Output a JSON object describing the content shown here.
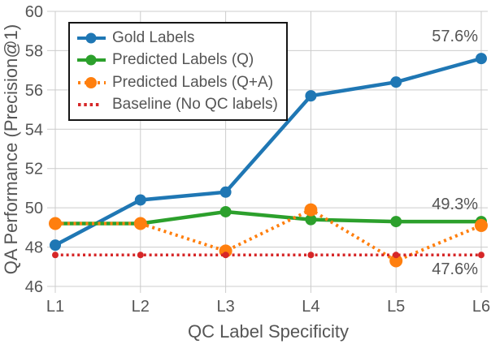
{
  "figure": {
    "background": "#ffffff",
    "text_color": "#555555",
    "grid_color": "#cccccc",
    "legend_border_color": "#151515"
  },
  "chart_data": {
    "type": "line",
    "title": "",
    "xlabel": "QC Label Specificity",
    "ylabel": "QA Performance (Precision@1)",
    "categories": [
      "L1",
      "L2",
      "L3",
      "L4",
      "L5",
      "L6"
    ],
    "yticks": [
      46,
      48,
      50,
      52,
      54,
      56,
      58,
      60
    ],
    "ylim": [
      46,
      60
    ],
    "grid": true,
    "legend_position": "upper-left",
    "series": [
      {
        "name": "Gold Labels",
        "color": "#1f77b4",
        "style": "solid",
        "marker": "circle",
        "values": [
          48.1,
          50.4,
          50.8,
          55.7,
          56.4,
          57.6
        ]
      },
      {
        "name": "Predicted Labels (Q)",
        "color": "#2ca02c",
        "style": "solid",
        "marker": "circle",
        "values": [
          49.2,
          49.2,
          49.8,
          49.4,
          49.3,
          49.3
        ]
      },
      {
        "name": "Predicted Labels (Q+A)",
        "color": "#ff7f0e",
        "style": "dotted",
        "marker": "circle",
        "values": [
          49.2,
          49.2,
          47.8,
          49.9,
          47.3,
          49.1
        ]
      },
      {
        "name": "Baseline (No QC labels)",
        "color": "#d62728",
        "style": "dotted",
        "marker": "dot",
        "values": [
          47.6,
          47.6,
          47.6,
          47.6,
          47.6,
          47.6
        ]
      }
    ],
    "annotations": [
      {
        "text": "57.6%",
        "series": "Gold Labels",
        "x": "L6",
        "y": 57.6
      },
      {
        "text": "49.3%",
        "series": "Predicted Labels (Q)",
        "x": "L6",
        "y": 49.3
      },
      {
        "text": "47.6%",
        "series": "Baseline (No QC labels)",
        "x": "L6",
        "y": 47.6
      }
    ]
  }
}
